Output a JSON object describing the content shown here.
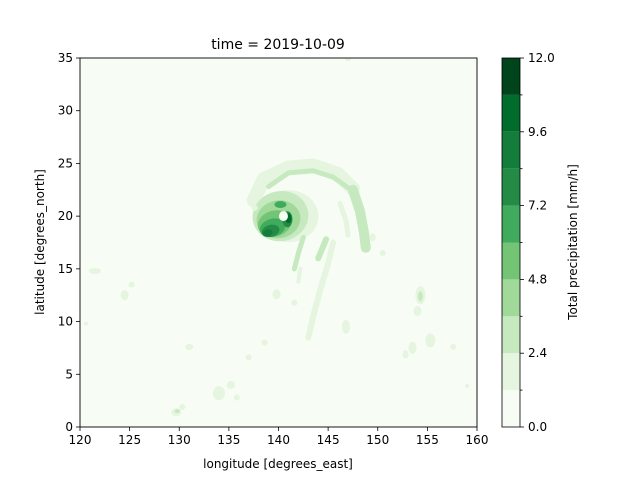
{
  "chart_data": {
    "type": "heatmap",
    "subtype": "filled-contour",
    "title": "time = 2019-10-09",
    "xlabel": "longitude [degrees_east]",
    "ylabel": "latitude [degrees_north]",
    "xlim": [
      120,
      160
    ],
    "ylim": [
      0,
      35
    ],
    "x_ticks": [
      "120",
      "125",
      "130",
      "135",
      "140",
      "145",
      "150",
      "155",
      "160"
    ],
    "y_ticks": [
      "0",
      "5",
      "10",
      "15",
      "20",
      "25",
      "30",
      "35"
    ],
    "grid": false,
    "colorbar": {
      "label": "Total precipitation [mm/h]",
      "levels": [
        0.0,
        1.2,
        2.4,
        3.6,
        4.8,
        6.0,
        7.2,
        8.4,
        9.6,
        10.8,
        12.0
      ],
      "tick_labels": [
        "0.0",
        "2.4",
        "4.8",
        "7.2",
        "9.6",
        "12.0"
      ],
      "colors": [
        "#f7fcf5",
        "#e5f5e0",
        "#c7e9c0",
        "#a1d99b",
        "#74c476",
        "#41ab5d",
        "#238b45",
        "#137d3b",
        "#006d2c",
        "#00441b"
      ]
    },
    "features": [
      {
        "name": "typhoon core",
        "lon": 141,
        "lat": 20,
        "peak_mm_h": 10.8,
        "eye": true
      },
      {
        "name": "spiral rainband",
        "lon_range": [
          137,
          150
        ],
        "lat_range": [
          14,
          25
        ],
        "level_mm_h": 3.6
      },
      {
        "name": "trailing band",
        "lon_range": [
          143,
          148
        ],
        "lat_range": [
          8,
          16
        ],
        "level_mm_h": 1.2
      },
      {
        "name": "scattered cells",
        "lon_range": [
          121,
          159
        ],
        "lat_range": [
          0,
          15
        ],
        "level_mm_h": 1.2
      }
    ]
  }
}
